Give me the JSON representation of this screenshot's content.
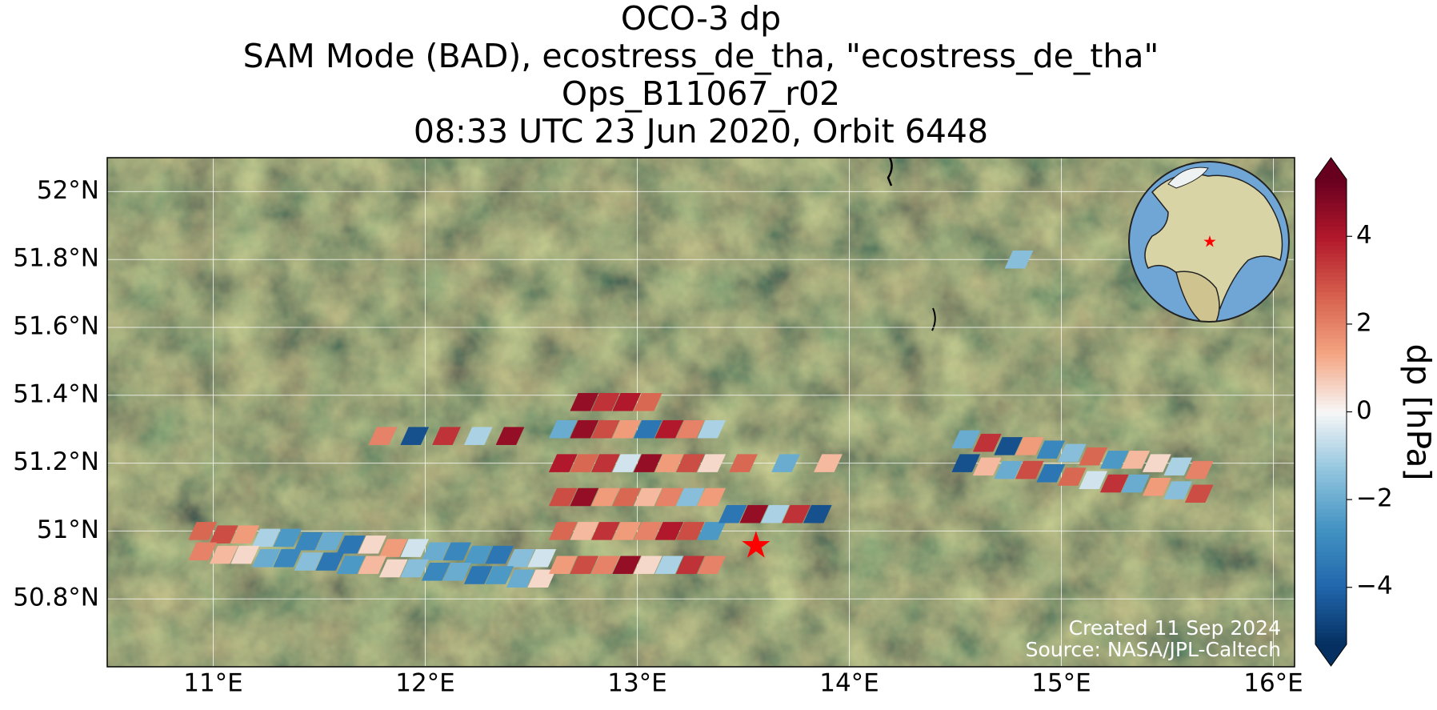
{
  "chart_data": {
    "type": "map",
    "title_lines": [
      "OCO-3 dp",
      "SAM Mode (BAD), ecostress_de_tha, \"ecostress_de_tha\"",
      "Ops_B11067_r02",
      "08:33 UTC 23 Jun 2020, Orbit 6448"
    ],
    "xlim": [
      10.5,
      16.1
    ],
    "ylim": [
      50.6,
      52.1
    ],
    "xticks": [
      {
        "value": 11,
        "label": "11°E"
      },
      {
        "value": 12,
        "label": "12°E"
      },
      {
        "value": 13,
        "label": "13°E"
      },
      {
        "value": 14,
        "label": "14°E"
      },
      {
        "value": 15,
        "label": "15°E"
      },
      {
        "value": 16,
        "label": "16°E"
      }
    ],
    "yticks": [
      {
        "value": 50.8,
        "label": "50.8°N"
      },
      {
        "value": 51,
        "label": "51°N"
      },
      {
        "value": 51.2,
        "label": "51.2°N"
      },
      {
        "value": 51.4,
        "label": "51.4°N"
      },
      {
        "value": 51.6,
        "label": "51.6°N"
      },
      {
        "value": 51.8,
        "label": "51.8°N"
      },
      {
        "value": 52,
        "label": "52°N"
      }
    ],
    "grid": true,
    "colorbar": {
      "label": "dp [hPa]",
      "clim": [
        -5.3,
        5.3
      ],
      "ticks": [
        {
          "value": -4,
          "label": "−4"
        },
        {
          "value": -2,
          "label": "−2"
        },
        0,
        2,
        4
      ],
      "colormap": [
        "#053061",
        "#2166ac",
        "#4393c3",
        "#92c5de",
        "#f7f7f7",
        "#f4a582",
        "#d6604d",
        "#b2182b",
        "#67001f"
      ]
    },
    "target": {
      "lon": 13.56,
      "lat": 50.96,
      "color": "#ff0000"
    },
    "swaths": [
      {
        "lon": [
          10.95,
          11.05,
          11.15,
          11.25,
          11.35,
          11.45,
          11.55,
          11.65,
          11.75,
          11.85,
          11.95,
          12.05,
          12.15,
          12.25,
          12.35,
          12.45,
          12.55,
          10.95,
          11.05,
          11.15,
          11.25,
          11.35,
          11.45,
          11.55,
          11.65,
          11.75,
          11.85,
          11.95,
          12.05,
          12.15,
          12.25,
          12.35,
          12.45,
          12.55
        ],
        "lat": [
          51.0,
          50.99,
          50.99,
          50.98,
          50.98,
          50.97,
          50.97,
          50.96,
          50.96,
          50.95,
          50.95,
          50.94,
          50.94,
          50.93,
          50.93,
          50.92,
          50.92,
          50.94,
          50.93,
          50.93,
          50.92,
          50.92,
          50.91,
          50.91,
          50.9,
          50.9,
          50.89,
          50.89,
          50.88,
          50.88,
          50.87,
          50.87,
          50.86,
          50.86
        ],
        "dp": [
          2.5,
          3.0,
          1.5,
          -1.0,
          -2.5,
          -3.0,
          -2.0,
          -3.5,
          0.5,
          1.5,
          -0.5,
          -2.0,
          -3.0,
          -2.5,
          -3.5,
          -1.5,
          -0.5,
          2.0,
          1.0,
          0.5,
          -2.0,
          -3.0,
          -1.5,
          -3.5,
          -2.5,
          1.0,
          0.5,
          -1.5,
          -3.0,
          -2.0,
          -3.5,
          -2.5,
          -2.0,
          0.5
        ]
      },
      {
        "lon": [
          12.65,
          12.75,
          12.85,
          12.95,
          13.05,
          13.15,
          13.25,
          13.35,
          12.65,
          12.75,
          12.85,
          12.95,
          13.05,
          13.15,
          13.25,
          13.35,
          12.65,
          12.75,
          12.85,
          12.95,
          13.05,
          13.15,
          13.25,
          13.35,
          12.65,
          12.75,
          12.85,
          12.95,
          13.05,
          13.15,
          13.25,
          13.35,
          12.65,
          12.75,
          12.85,
          12.95,
          13.05,
          13.15,
          13.25,
          13.35,
          12.75,
          12.85,
          12.95,
          13.05
        ],
        "lat": [
          50.9,
          50.9,
          50.9,
          50.9,
          50.9,
          50.9,
          50.9,
          50.9,
          51.0,
          51.0,
          51.0,
          51.0,
          51.0,
          51.0,
          51.0,
          51.0,
          51.1,
          51.1,
          51.1,
          51.1,
          51.1,
          51.1,
          51.1,
          51.1,
          51.2,
          51.2,
          51.2,
          51.2,
          51.2,
          51.2,
          51.2,
          51.2,
          51.3,
          51.3,
          51.3,
          51.3,
          51.3,
          51.3,
          51.3,
          51.3,
          51.38,
          51.38,
          51.38,
          51.38
        ],
        "dp": [
          1.5,
          3.0,
          2.0,
          4.5,
          0.5,
          -1.0,
          3.5,
          2.0,
          2.5,
          1.0,
          3.5,
          1.5,
          2.0,
          4.0,
          3.0,
          -2.5,
          3.0,
          4.5,
          1.5,
          2.5,
          1.0,
          2.0,
          -1.5,
          1.5,
          4.0,
          2.5,
          3.5,
          -0.5,
          4.5,
          1.5,
          3.0,
          0.5,
          -2.0,
          4.5,
          3.0,
          1.5,
          -3.5,
          4.0,
          2.0,
          -1.0,
          4.5,
          3.5,
          4.0,
          2.5
        ]
      },
      {
        "lon": [
          13.45,
          13.55,
          13.65,
          13.75,
          13.85,
          13.5,
          13.7,
          13.9
        ],
        "lat": [
          51.05,
          51.05,
          51.05,
          51.05,
          51.05,
          51.2,
          51.2,
          51.2
        ],
        "dp": [
          -3.5,
          4.5,
          -1.0,
          3.5,
          -4.5,
          2.5,
          -2.0,
          1.0
        ]
      },
      {
        "lon": [
          11.8,
          11.95,
          12.1,
          12.25,
          12.4
        ],
        "lat": [
          51.28,
          51.28,
          51.28,
          51.28,
          51.28
        ],
        "dp": [
          2.0,
          -4.5,
          3.5,
          -1.0,
          4.5
        ]
      },
      {
        "lon": [
          14.55,
          14.65,
          14.75,
          14.85,
          14.95,
          15.05,
          15.15,
          15.25,
          15.35,
          15.45,
          15.55,
          15.65,
          14.55,
          14.65,
          14.75,
          14.85,
          14.95,
          15.05,
          15.15,
          15.25,
          15.35,
          15.45,
          15.55,
          15.65
        ],
        "lat": [
          51.27,
          51.26,
          51.25,
          51.25,
          51.24,
          51.23,
          51.22,
          51.21,
          51.21,
          51.2,
          51.19,
          51.18,
          51.2,
          51.19,
          51.18,
          51.18,
          51.17,
          51.16,
          51.15,
          51.14,
          51.14,
          51.13,
          51.12,
          51.11
        ],
        "dp": [
          -2.0,
          3.5,
          -4.5,
          1.5,
          -3.0,
          -1.5,
          2.5,
          -2.5,
          1.0,
          0.5,
          -1.0,
          2.0,
          -4.5,
          1.0,
          -2.0,
          3.0,
          -3.5,
          2.5,
          -0.5,
          3.5,
          -2.0,
          1.5,
          -1.5,
          3.0
        ]
      },
      {
        "lon": [
          14.8
        ],
        "lat": [
          51.8
        ],
        "dp": [
          -1.5
        ]
      }
    ],
    "footer": [
      "Created 11 Sep 2024",
      "Source: NASA/JPL-Caltech"
    ]
  }
}
